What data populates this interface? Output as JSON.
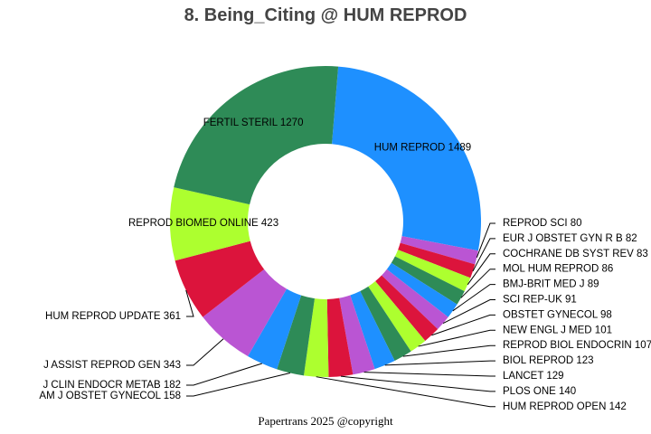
{
  "chart_data": {
    "type": "pie",
    "variant": "donut",
    "title": "8. Being_Citing @ HUM REPROD",
    "footer": "Papertrans 2025 @copyright",
    "slices": [
      {
        "label": "HUM REPROD",
        "value": 1489,
        "color": "#1E90FF"
      },
      {
        "label": "REPROD SCI",
        "value": 80,
        "color": "#BA55D3"
      },
      {
        "label": "EUR J OBSTET GYN R B",
        "value": 82,
        "color": "#DC143C"
      },
      {
        "label": "COCHRANE DB SYST REV",
        "value": 83,
        "color": "#ADFF2F"
      },
      {
        "label": "MOL HUM REPROD",
        "value": 86,
        "color": "#2E8B57"
      },
      {
        "label": "BMJ-BRIT MED J",
        "value": 89,
        "color": "#1E90FF"
      },
      {
        "label": "SCI REP-UK",
        "value": 91,
        "color": "#BA55D3"
      },
      {
        "label": "OBSTET GYNECOL",
        "value": 98,
        "color": "#DC143C"
      },
      {
        "label": "NEW ENGL J MED",
        "value": 101,
        "color": "#ADFF2F"
      },
      {
        "label": "REPROD BIOL ENDOCRIN",
        "value": 107,
        "color": "#2E8B57"
      },
      {
        "label": "BIOL REPROD",
        "value": 123,
        "color": "#1E90FF"
      },
      {
        "label": "LANCET",
        "value": 129,
        "color": "#BA55D3"
      },
      {
        "label": "PLOS ONE",
        "value": 140,
        "color": "#DC143C"
      },
      {
        "label": "HUM REPROD OPEN",
        "value": 142,
        "color": "#ADFF2F"
      },
      {
        "label": "AM J OBSTET GYNECOL",
        "value": 158,
        "color": "#2E8B57"
      },
      {
        "label": "J CLIN ENDOCR METAB",
        "value": 182,
        "color": "#1E90FF"
      },
      {
        "label": "J ASSIST REPROD GEN",
        "value": 343,
        "color": "#BA55D3"
      },
      {
        "label": "HUM REPROD UPDATE",
        "value": 361,
        "color": "#DC143C"
      },
      {
        "label": "REPROD BIOMED ONLINE",
        "value": 423,
        "color": "#ADFF2F"
      },
      {
        "label": "FERTIL STERIL",
        "value": 1270,
        "color": "#2E8B57"
      }
    ]
  }
}
